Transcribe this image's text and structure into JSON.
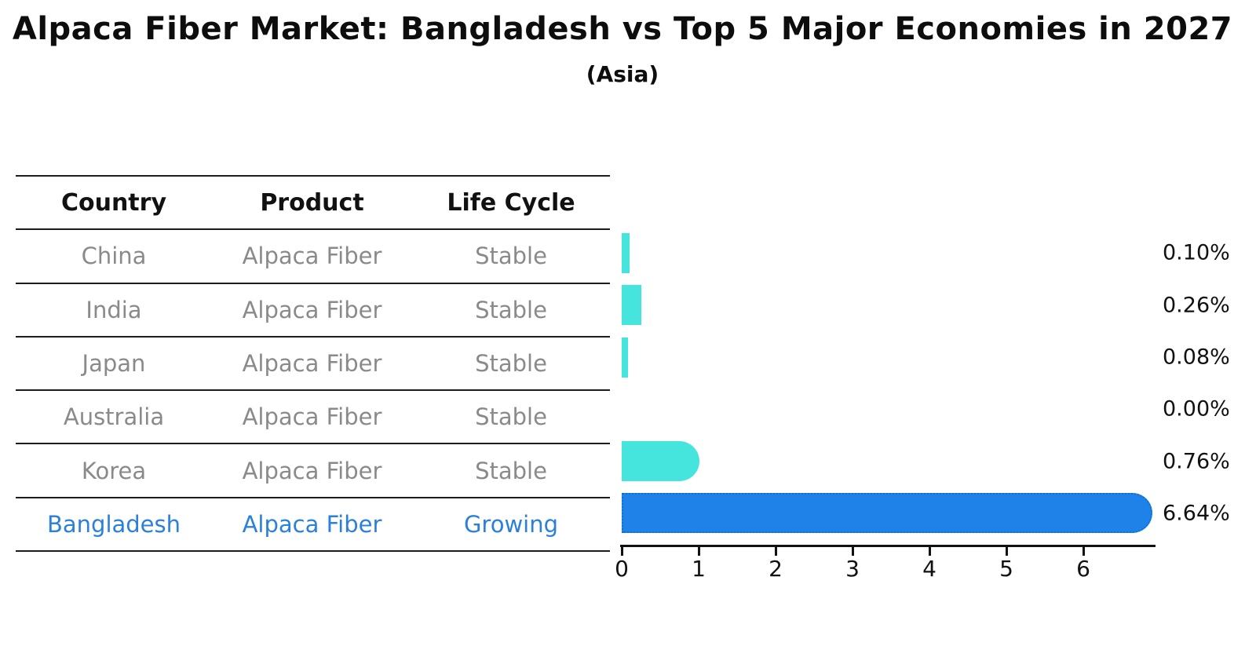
{
  "colors": {
    "bar_cyan": "#45e5dd",
    "bar_blue": "#1e82e8",
    "highlight_text_blue": "#2b80d9",
    "text_gray": "#8a8a8a",
    "text_black": "#111111"
  },
  "table": {
    "headers": [
      "Country",
      "Product",
      "Life Cycle"
    ],
    "rows": [
      {
        "country": "China",
        "product": "Alpaca Fiber",
        "life_cycle": "Stable",
        "highlight": false
      },
      {
        "country": "India",
        "product": "Alpaca Fiber",
        "life_cycle": "Stable",
        "highlight": false
      },
      {
        "country": "Japan",
        "product": "Alpaca Fiber",
        "life_cycle": "Stable",
        "highlight": false
      },
      {
        "country": "Australia",
        "product": "Alpaca Fiber",
        "life_cycle": "Stable",
        "highlight": false
      },
      {
        "country": "Korea",
        "product": "Alpaca Fiber",
        "life_cycle": "Stable",
        "highlight": false
      },
      {
        "country": "Bangladesh",
        "product": "Alpaca Fiber",
        "life_cycle": "Growing",
        "highlight": true
      }
    ]
  },
  "chart_data": {
    "type": "bar",
    "orientation": "horizontal",
    "title": "Alpaca Fiber Market: Bangladesh vs Top 5 Major Economies in 2027",
    "subtitle": "(Asia)",
    "categories": [
      "China",
      "India",
      "Japan",
      "Australia",
      "Korea",
      "Bangladesh"
    ],
    "values": [
      0.1,
      0.26,
      0.08,
      0.0,
      0.76,
      6.64
    ],
    "value_labels": [
      "0.10%",
      "0.26%",
      "0.08%",
      "0.00%",
      "0.76%",
      "6.64%"
    ],
    "bar_colors": [
      "#45e5dd",
      "#45e5dd",
      "#45e5dd",
      "#45e5dd",
      "#45e5dd",
      "#1e82e8"
    ],
    "highlight_index": 5,
    "xlim": [
      0,
      6.95
    ],
    "x_ticks": [
      0,
      1,
      2,
      3,
      4,
      5,
      6
    ],
    "x_tick_labels": [
      "0",
      "1",
      "2",
      "3",
      "4",
      "5",
      "6"
    ],
    "grid": false,
    "legend": "none"
  }
}
